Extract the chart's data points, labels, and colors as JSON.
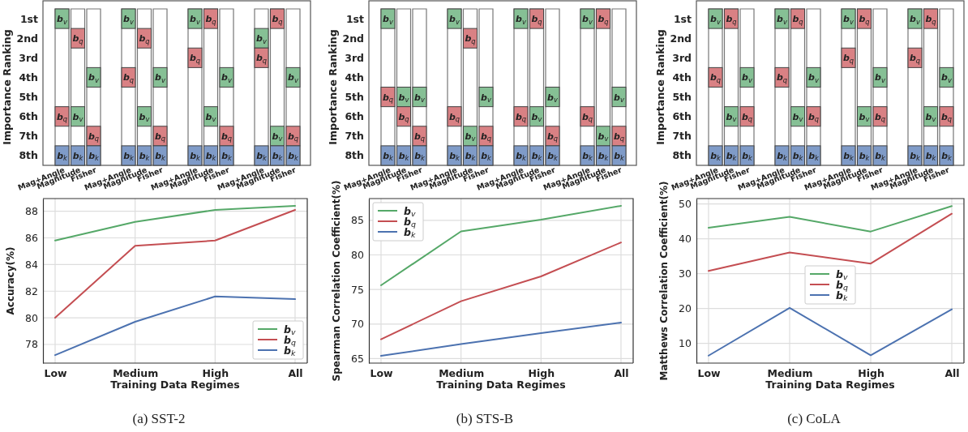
{
  "chart_data": [
    {
      "type": "heatmap",
      "ylabel": "Importance Ranking",
      "categories": [
        "Mag+Angle",
        "Magnitude",
        "Fisher",
        "Mag+Angle",
        "Magnitude",
        "Fisher",
        "Mag+Angle",
        "Magnitude",
        "Fisher",
        "Mag+Angle",
        "Magnitude",
        "Fisher"
      ],
      "y_categories": [
        "1st",
        "2nd",
        "3rd",
        "4th",
        "5th",
        "6th",
        "7th",
        "8th"
      ],
      "cells": [
        [
          "b$_{v}$",
          null,
          null,
          "b$_{v}$",
          null,
          null,
          "b$_{v}$",
          "b$_{q}$",
          null,
          null,
          "b$_{q}$",
          null
        ],
        [
          null,
          "b$_{q}$",
          null,
          null,
          "b$_{q}$",
          null,
          null,
          null,
          null,
          "b$_{v}$",
          null,
          null
        ],
        [
          null,
          null,
          null,
          null,
          null,
          null,
          "b$_{q}$",
          null,
          null,
          "b$_{q}$",
          null,
          null
        ],
        [
          null,
          null,
          "b$_{v}$",
          "b$_{q}$",
          null,
          "b$_{v}$",
          null,
          null,
          "b$_{v}$",
          null,
          null,
          "b$_{v}$"
        ],
        [
          null,
          null,
          null,
          null,
          null,
          null,
          null,
          null,
          null,
          null,
          null,
          null
        ],
        [
          "b$_{q}$",
          "b$_{v}$",
          null,
          null,
          "b$_{v}$",
          null,
          null,
          "b$_{v}$",
          null,
          null,
          null,
          null
        ],
        [
          null,
          null,
          "b$_{q}$",
          null,
          null,
          "b$_{q}$",
          null,
          null,
          "b$_{q}$",
          null,
          "b$_{v}$",
          "b$_{q}$"
        ],
        [
          "b$_{k}$",
          "b$_{k}$",
          "b$_{k}$",
          "b$_{k}$",
          "b$_{k}$",
          "b$_{k}$",
          "b$_{k}$",
          "b$_{k}$",
          "b$_{k}$",
          "b$_{k}$",
          "b$_{k}$",
          "b$_{k}$"
        ]
      ],
      "colors": [
        [
          "#86c095",
          null,
          null,
          "#86c095",
          null,
          null,
          "#86c095",
          "#d98184",
          null,
          null,
          "#d98184",
          null
        ],
        [
          null,
          "#d98184",
          null,
          null,
          "#d98184",
          null,
          null,
          null,
          null,
          "#86c095",
          null,
          null
        ],
        [
          null,
          null,
          null,
          null,
          null,
          null,
          "#d98184",
          null,
          null,
          "#d98184",
          null,
          null
        ],
        [
          null,
          null,
          "#86c095",
          "#d98184",
          null,
          "#86c095",
          null,
          null,
          "#86c095",
          null,
          null,
          "#86c095"
        ],
        [
          null,
          null,
          null,
          null,
          null,
          null,
          null,
          null,
          null,
          null,
          null,
          null
        ],
        [
          "#d98184",
          "#86c095",
          null,
          null,
          "#86c095",
          null,
          null,
          "#86c095",
          null,
          null,
          null,
          null
        ],
        [
          null,
          null,
          "#d98184",
          null,
          null,
          "#d98184",
          null,
          null,
          "#d98184",
          null,
          "#86c095",
          "#d98184"
        ],
        [
          "#7f9bc8",
          "#7f9bc8",
          "#7f9bc8",
          "#7f9bc8",
          "#7f9bc8",
          "#7f9bc8",
          "#7f9bc8",
          "#7f9bc8",
          "#7f9bc8",
          "#7f9bc8",
          "#7f9bc8",
          "#7f9bc8"
        ]
      ]
    },
    {
      "type": "heatmap",
      "ylabel": "Importance Ranking",
      "categories": [
        "Mag+Angle",
        "Magnitude",
        "Fisher",
        "Mag+Angle",
        "Magnitude",
        "Fisher",
        "Mag+Angle",
        "Magnitude",
        "Fisher",
        "Mag+Angle",
        "Magnitude",
        "Fisher"
      ],
      "y_categories": [
        "1st",
        "2nd",
        "3rd",
        "4th",
        "5th",
        "6th",
        "7th",
        "8th"
      ],
      "cells": [
        [
          "b$_{v}$",
          null,
          null,
          "b$_{v}$",
          null,
          null,
          "b$_{v}$",
          "b$_{q}$",
          null,
          "b$_{v}$",
          "b$_{q}$",
          null
        ],
        [
          null,
          null,
          null,
          null,
          "b$_{q}$",
          null,
          null,
          null,
          null,
          null,
          null,
          null
        ],
        [
          null,
          null,
          null,
          null,
          null,
          null,
          null,
          null,
          null,
          null,
          null,
          null
        ],
        [
          null,
          null,
          null,
          null,
          null,
          null,
          null,
          null,
          null,
          null,
          null,
          null
        ],
        [
          "b$_{q}$",
          "b$_{v}$",
          "b$_{v}$",
          null,
          null,
          "b$_{v}$",
          null,
          null,
          "b$_{v}$",
          null,
          null,
          "b$_{v}$"
        ],
        [
          null,
          "b$_{q}$",
          null,
          "b$_{q}$",
          null,
          null,
          "b$_{q}$",
          "b$_{v}$",
          null,
          "b$_{q}$",
          null,
          null
        ],
        [
          null,
          null,
          "b$_{q}$",
          null,
          "b$_{v}$",
          "b$_{q}$",
          null,
          null,
          "b$_{q}$",
          null,
          "b$_{v}$",
          "b$_{q}$"
        ],
        [
          "b$_{k}$",
          "b$_{k}$",
          "b$_{k}$",
          "b$_{k}$",
          "b$_{k}$",
          "b$_{k}$",
          "b$_{k}$",
          "b$_{k}$",
          "b$_{k}$",
          "b$_{k}$",
          "b$_{k}$",
          "b$_{k}$"
        ]
      ],
      "colors": [
        [
          "#86c095",
          null,
          null,
          "#86c095",
          null,
          null,
          "#86c095",
          "#d98184",
          null,
          "#86c095",
          "#d98184",
          null
        ],
        [
          null,
          null,
          null,
          null,
          "#d98184",
          null,
          null,
          null,
          null,
          null,
          null,
          null
        ],
        [
          null,
          null,
          null,
          null,
          null,
          null,
          null,
          null,
          null,
          null,
          null,
          null
        ],
        [
          null,
          null,
          null,
          null,
          null,
          null,
          null,
          null,
          null,
          null,
          null,
          null
        ],
        [
          "#d98184",
          "#86c095",
          "#86c095",
          null,
          null,
          "#86c095",
          null,
          null,
          "#86c095",
          null,
          null,
          "#86c095"
        ],
        [
          null,
          "#d98184",
          null,
          "#d98184",
          null,
          null,
          "#d98184",
          "#86c095",
          null,
          "#d98184",
          null,
          null
        ],
        [
          null,
          null,
          "#d98184",
          null,
          "#86c095",
          "#d98184",
          null,
          null,
          "#d98184",
          null,
          "#86c095",
          "#d98184"
        ],
        [
          "#7f9bc8",
          "#7f9bc8",
          "#7f9bc8",
          "#7f9bc8",
          "#7f9bc8",
          "#7f9bc8",
          "#7f9bc8",
          "#7f9bc8",
          "#7f9bc8",
          "#7f9bc8",
          "#7f9bc8",
          "#7f9bc8"
        ]
      ]
    },
    {
      "type": "heatmap",
      "ylabel": "Importance Ranking",
      "categories": [
        "Mag+Angle",
        "Magnitude",
        "Fisher",
        "Mag+Angle",
        "Magnitude",
        "Fisher",
        "Mag+Angle",
        "Magnitude",
        "Fisher",
        "Mag+Angle",
        "Magnitude",
        "Fisher"
      ],
      "y_categories": [
        "1st",
        "2nd",
        "3rd",
        "4th",
        "5th",
        "6th",
        "7th",
        "8th"
      ],
      "cells": [
        [
          "b$_{v}$",
          "b$_{q}$",
          null,
          "b$_{v}$",
          "b$_{q}$",
          null,
          "b$_{v}$",
          "b$_{q}$",
          null,
          "b$_{v}$",
          "b$_{q}$",
          null
        ],
        [
          null,
          null,
          null,
          null,
          null,
          null,
          null,
          null,
          null,
          null,
          null,
          null
        ],
        [
          null,
          null,
          null,
          null,
          null,
          null,
          "b$_{q}$",
          null,
          null,
          "b$_{q}$",
          null,
          null
        ],
        [
          "b$_{q}$",
          null,
          "b$_{v}$",
          "b$_{q}$",
          null,
          "b$_{v}$",
          null,
          null,
          "b$_{v}$",
          null,
          null,
          "b$_{v}$"
        ],
        [
          null,
          null,
          null,
          null,
          null,
          null,
          null,
          null,
          null,
          null,
          null,
          null
        ],
        [
          null,
          "b$_{v}$",
          "b$_{q}$",
          null,
          "b$_{v}$",
          "b$_{q}$",
          null,
          "b$_{v}$",
          "b$_{q}$",
          null,
          "b$_{v}$",
          "b$_{q}$"
        ],
        [
          null,
          null,
          null,
          null,
          null,
          null,
          null,
          null,
          null,
          null,
          null,
          null
        ],
        [
          "b$_{k}$",
          "b$_{k}$",
          "b$_{k}$",
          "b$_{k}$",
          "b$_{k}$",
          "b$_{k}$",
          "b$_{k}$",
          "b$_{k}$",
          "b$_{k}$",
          "b$_{k}$",
          "b$_{k}$",
          "b$_{k}$"
        ]
      ],
      "colors": [
        [
          "#86c095",
          "#d98184",
          null,
          "#86c095",
          "#d98184",
          null,
          "#86c095",
          "#d98184",
          null,
          "#86c095",
          "#d98184",
          null
        ],
        [
          null,
          null,
          null,
          null,
          null,
          null,
          null,
          null,
          null,
          null,
          null,
          null
        ],
        [
          null,
          null,
          null,
          null,
          null,
          null,
          "#d98184",
          null,
          null,
          "#d98184",
          null,
          null
        ],
        [
          "#d98184",
          null,
          "#86c095",
          "#d98184",
          null,
          "#86c095",
          null,
          null,
          "#86c095",
          null,
          null,
          "#86c095"
        ],
        [
          null,
          null,
          null,
          null,
          null,
          null,
          null,
          null,
          null,
          null,
          null,
          null
        ],
        [
          null,
          "#86c095",
          "#d98184",
          null,
          "#86c095",
          "#d98184",
          null,
          "#86c095",
          "#d98184",
          null,
          "#86c095",
          "#d98184"
        ],
        [
          null,
          null,
          null,
          null,
          null,
          null,
          null,
          null,
          null,
          null,
          null,
          null
        ],
        [
          "#7f9bc8",
          "#7f9bc8",
          "#7f9bc8",
          "#7f9bc8",
          "#7f9bc8",
          "#7f9bc8",
          "#7f9bc8",
          "#7f9bc8",
          "#7f9bc8",
          "#7f9bc8",
          "#7f9bc8",
          "#7f9bc8"
        ]
      ]
    },
    {
      "type": "line",
      "xlabel": "Training Data Regimes",
      "ylabel": "Accuracy(%)",
      "categories": [
        "Low",
        "Medium",
        "High",
        "All"
      ],
      "ylim": [
        76.6,
        88.95
      ],
      "yticks": [
        78,
        80,
        82,
        84,
        86,
        88
      ],
      "grid": true,
      "legend": "bottom right",
      "annotations": [
        "(a) SST-2"
      ],
      "series": [
        {
          "name": "b$_{v}$",
          "color": "#55a868",
          "values": [
            85.8,
            87.2,
            88.1,
            88.4
          ]
        },
        {
          "name": "b$_{q}$",
          "color": "#c44e52",
          "values": [
            80.0,
            85.4,
            85.8,
            88.1
          ]
        },
        {
          "name": "b$_{k}$",
          "color": "#4c72b0",
          "values": [
            77.2,
            79.7,
            81.6,
            81.4
          ]
        }
      ]
    },
    {
      "type": "line",
      "xlabel": "Training Data Regimes",
      "ylabel": "Spearman Correlation Coefficient(%)",
      "categories": [
        "Low",
        "Medium",
        "High",
        "All"
      ],
      "ylim": [
        64.35,
        88.15
      ],
      "yticks": [
        65,
        70,
        75,
        80,
        85
      ],
      "grid": true,
      "legend": "top left",
      "annotations": [
        "(b) STS-B"
      ],
      "series": [
        {
          "name": "b$_{v}$",
          "color": "#55a868",
          "values": [
            75.6,
            83.4,
            85.1,
            87.1
          ]
        },
        {
          "name": "b$_{q}$",
          "color": "#c44e52",
          "values": [
            67.8,
            73.3,
            76.9,
            81.8
          ]
        },
        {
          "name": "b$_{k}$",
          "color": "#4c72b0",
          "values": [
            65.4,
            67.1,
            68.7,
            70.2
          ]
        }
      ]
    },
    {
      "type": "line",
      "xlabel": "Training Data Regimes",
      "ylabel": "Matthews Correlation Coefficient(%)",
      "categories": [
        "Low",
        "Medium",
        "High",
        "All"
      ],
      "ylim": [
        4.35,
        51.55
      ],
      "yticks": [
        10,
        20,
        30,
        40,
        50
      ],
      "grid": true,
      "legend": "center",
      "annotations": [
        "(c) CoLA"
      ],
      "series": [
        {
          "name": "b$_{v}$",
          "color": "#55a868",
          "values": [
            43.2,
            46.3,
            42.1,
            49.4
          ]
        },
        {
          "name": "b$_{q}$",
          "color": "#c44e52",
          "values": [
            30.8,
            36.1,
            32.9,
            47.2
          ]
        },
        {
          "name": "b$_{k}$",
          "color": "#4c72b0",
          "values": [
            6.5,
            20.2,
            6.6,
            19.8
          ]
        }
      ]
    }
  ]
}
